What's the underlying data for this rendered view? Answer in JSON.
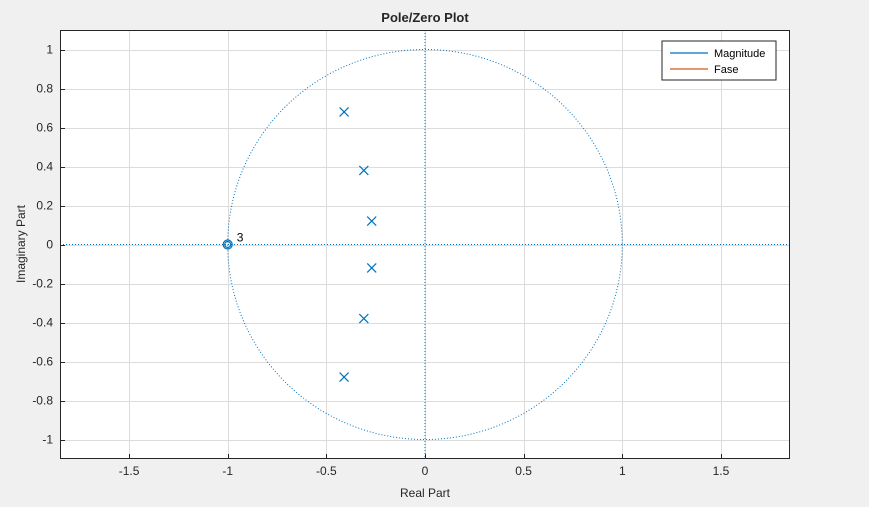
{
  "chart_data": {
    "type": "scatter",
    "title": "Pole/Zero Plot",
    "xlabel": "Real Part",
    "ylabel": "Imaginary Part",
    "xlim": [
      -1.85,
      1.85
    ],
    "ylim": [
      -1.1,
      1.1
    ],
    "xticks": [
      -1.5,
      -1,
      -0.5,
      0,
      0.5,
      1,
      1.5
    ],
    "xtick_labels": [
      "-1.5",
      "-1",
      "-0.5",
      "0",
      "0.5",
      "1",
      "1.5"
    ],
    "yticks": [
      -1,
      -0.8,
      -0.6,
      -0.4,
      -0.2,
      0,
      0.2,
      0.4,
      0.6,
      0.8,
      1
    ],
    "ytick_labels": [
      "-1",
      "-0.8",
      "-0.6",
      "-0.4",
      "-0.2",
      "0",
      "0.2",
      "0.4",
      "0.6",
      "0.8",
      "1"
    ],
    "grid": true,
    "unit_circle": true,
    "legend": {
      "location": "top-right",
      "entries": [
        {
          "label": "Magnitude",
          "color": "#0072bd"
        },
        {
          "label": "Fase",
          "color": "#d95319"
        }
      ]
    },
    "series": [
      {
        "marker": "x",
        "color": "#0072bd",
        "points": [
          {
            "x": -0.41,
            "y": 0.68
          },
          {
            "x": -0.31,
            "y": 0.38
          },
          {
            "x": -0.27,
            "y": 0.12
          },
          {
            "x": -0.27,
            "y": -0.12
          },
          {
            "x": -0.31,
            "y": -0.38
          },
          {
            "x": -0.41,
            "y": -0.68
          }
        ]
      },
      {
        "marker": "o",
        "color": "#0072bd",
        "points": [
          {
            "x": -1,
            "y": 0,
            "multiplicity": "3"
          }
        ]
      }
    ]
  }
}
